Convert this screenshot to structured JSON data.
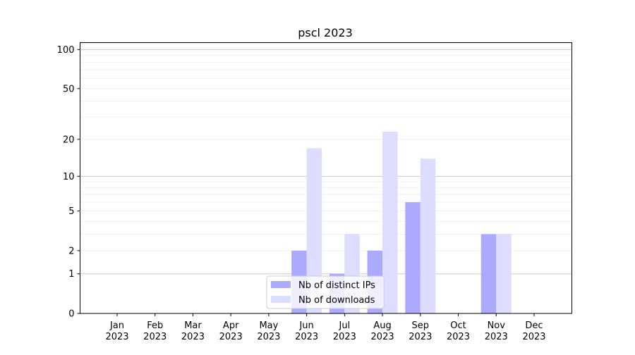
{
  "chart_data": {
    "type": "bar",
    "title": "pscl 2023",
    "xlabel": "",
    "ylabel": "",
    "yscale": "log(1+y)",
    "ylim": [
      0,
      113
    ],
    "yticks": [
      0,
      1,
      2,
      5,
      10,
      20,
      50,
      100
    ],
    "categories": [
      "Jan\n2023",
      "Feb\n2023",
      "Mar\n2023",
      "Apr\n2023",
      "May\n2023",
      "Jun\n2023",
      "Jul\n2023",
      "Aug\n2023",
      "Sep\n2023",
      "Oct\n2023",
      "Nov\n2023",
      "Dec\n2023"
    ],
    "series": [
      {
        "name": "Nb of distinct IPs",
        "color": "#aaaaff",
        "values": [
          0,
          0,
          0,
          0,
          0,
          2,
          1,
          2,
          6,
          0,
          3,
          0
        ]
      },
      {
        "name": "Nb of downloads",
        "color": "#ddddff",
        "values": [
          0,
          0,
          0,
          0,
          0,
          17,
          3,
          23,
          14,
          0,
          3,
          0
        ]
      }
    ],
    "grid": true,
    "legend": "bottom-center"
  }
}
